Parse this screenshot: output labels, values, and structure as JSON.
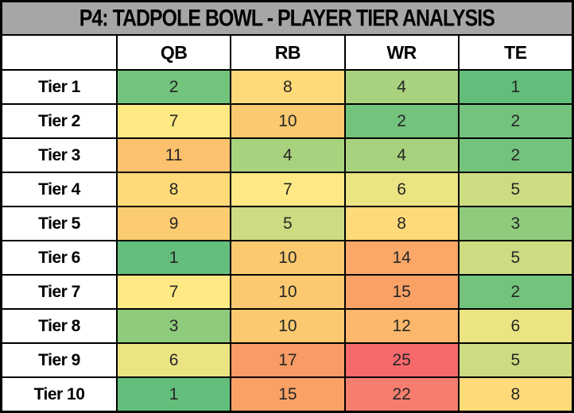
{
  "title": "P4: TADPOLE BOWL - PLAYER TIER ANALYSIS",
  "colors": {
    "title_bg": "#A6A6A6",
    "header_bg": "#FFFFFF",
    "border": "#000000",
    "value_text": "#262626",
    "label_text": "#000000"
  },
  "chart_data": {
    "type": "heatmap",
    "title": "P4: TADPOLE BOWL - PLAYER TIER ANALYSIS",
    "columns": [
      "QB",
      "RB",
      "WR",
      "TE"
    ],
    "rows": [
      {
        "label": "Tier 1",
        "values": [
          2,
          8,
          4,
          1
        ]
      },
      {
        "label": "Tier 2",
        "values": [
          7,
          10,
          2,
          2
        ]
      },
      {
        "label": "Tier 3",
        "values": [
          11,
          4,
          4,
          2
        ]
      },
      {
        "label": "Tier 4",
        "values": [
          8,
          7,
          6,
          5
        ]
      },
      {
        "label": "Tier 5",
        "values": [
          9,
          5,
          8,
          3
        ]
      },
      {
        "label": "Tier 6",
        "values": [
          1,
          10,
          14,
          5
        ]
      },
      {
        "label": "Tier 7",
        "values": [
          7,
          10,
          15,
          2
        ]
      },
      {
        "label": "Tier 8",
        "values": [
          3,
          10,
          12,
          6
        ]
      },
      {
        "label": "Tier 9",
        "values": [
          6,
          17,
          25,
          5
        ]
      },
      {
        "label": "Tier 10",
        "values": [
          1,
          15,
          22,
          8
        ]
      }
    ],
    "color_scale": {
      "style": "3-color green-yellow-red",
      "min_value": 1,
      "max_value": 25,
      "min_color": "#63BE7B",
      "mid_color": "#FFEB84",
      "max_color": "#F8696B"
    },
    "palette": {
      "1": "#63BE7B",
      "2": "#74C37D",
      "3": "#8FCB7D",
      "4": "#A9D27E",
      "5": "#CDDB81",
      "6": "#EBE483",
      "7": "#FFE984",
      "8": "#FFDA78",
      "9": "#FCCC70",
      "10": "#FBC96F",
      "11": "#FBC16C",
      "12": "#FBB76B",
      "14": "#FAA768",
      "15": "#FAA266",
      "17": "#F99B64",
      "22": "#F67E6E",
      "25": "#F7696B"
    },
    "legend_position": "none",
    "grid": "black cell borders"
  }
}
